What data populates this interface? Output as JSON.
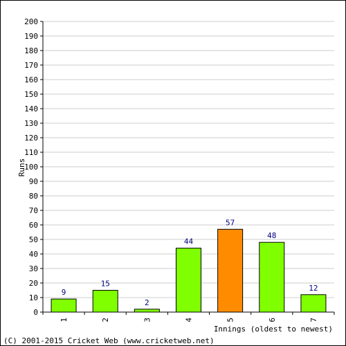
{
  "chart_data": {
    "type": "bar",
    "categories": [
      "1",
      "2",
      "3",
      "4",
      "5",
      "6",
      "7"
    ],
    "values": [
      9,
      15,
      2,
      44,
      57,
      48,
      12
    ],
    "title": "",
    "xlabel": "Innings (oldest to newest)",
    "ylabel": "Runs",
    "ylim": [
      0,
      200
    ],
    "ytick_step": 10,
    "grid": true,
    "colors": {
      "default_bar": "#80ff00",
      "highlight_bar": "#ff8c00",
      "highlight_index": 4,
      "bar_outline": "#000000",
      "grid": "#cccccc",
      "data_label": "#000080"
    }
  },
  "footer": {
    "copyright": "(C) 2001-2015 Cricket Web (www.cricketweb.net)"
  }
}
